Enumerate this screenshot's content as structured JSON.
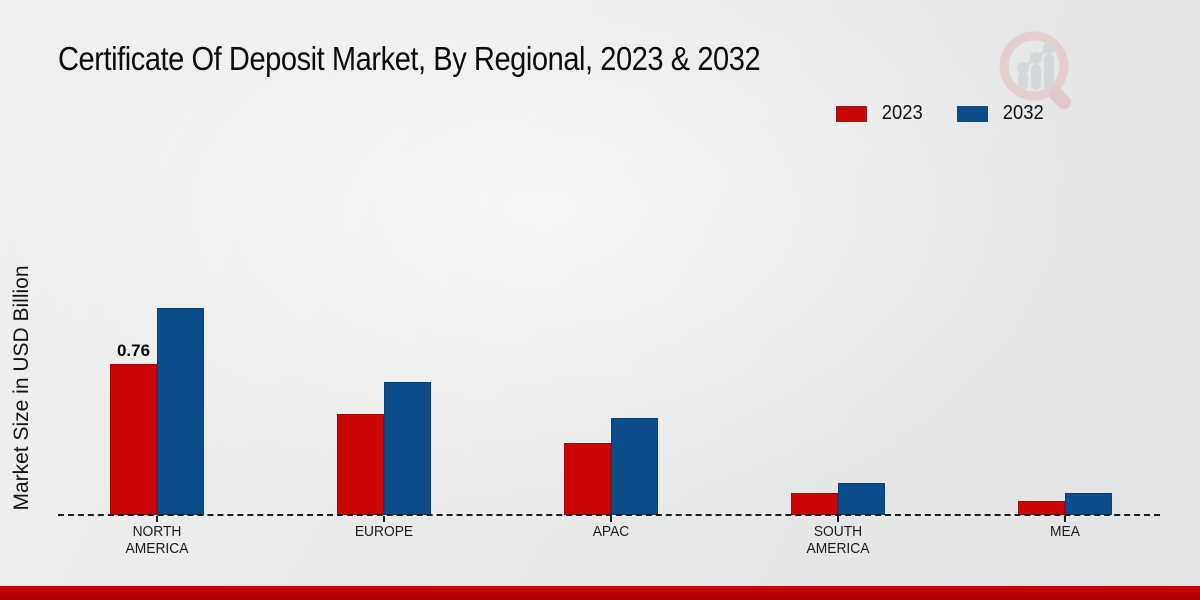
{
  "title": "Certificate Of Deposit Market, By Regional, 2023 & 2032",
  "y_axis_label": "Market Size in USD Billion",
  "chart_data": {
    "type": "bar",
    "title": "Certificate Of Deposit Market, By Regional, 2023 & 2032",
    "ylabel": "Market Size in USD Billion",
    "xlabel": "",
    "categories": [
      "NORTH AMERICA",
      "EUROPE",
      "APAC",
      "SOUTH AMERICA",
      "MEA"
    ],
    "category_label_lines": [
      [
        "NORTH",
        "AMERICA"
      ],
      [
        "EUROPE"
      ],
      [
        "APAC"
      ],
      [
        "SOUTH",
        "AMERICA"
      ],
      [
        "MEA"
      ]
    ],
    "series": [
      {
        "name": "2023",
        "color": "#cb0606",
        "values": [
          0.76,
          0.51,
          0.36,
          0.11,
          0.07
        ]
      },
      {
        "name": "2032",
        "color": "#0b4d8a",
        "values": [
          1.04,
          0.67,
          0.49,
          0.16,
          0.11
        ]
      }
    ],
    "data_labels": [
      {
        "series": "2023",
        "category": "NORTH AMERICA",
        "text": "0.76"
      }
    ],
    "ylim": [
      0,
      1.15
    ],
    "grid": false,
    "axis_baseline_style": "dashed",
    "legend_position": "top-right"
  },
  "footer": {
    "bar_color_top": "#cb0404",
    "bar_color_bottom": "#a80000"
  },
  "watermark": {
    "icon": "market-research-future-logo"
  }
}
